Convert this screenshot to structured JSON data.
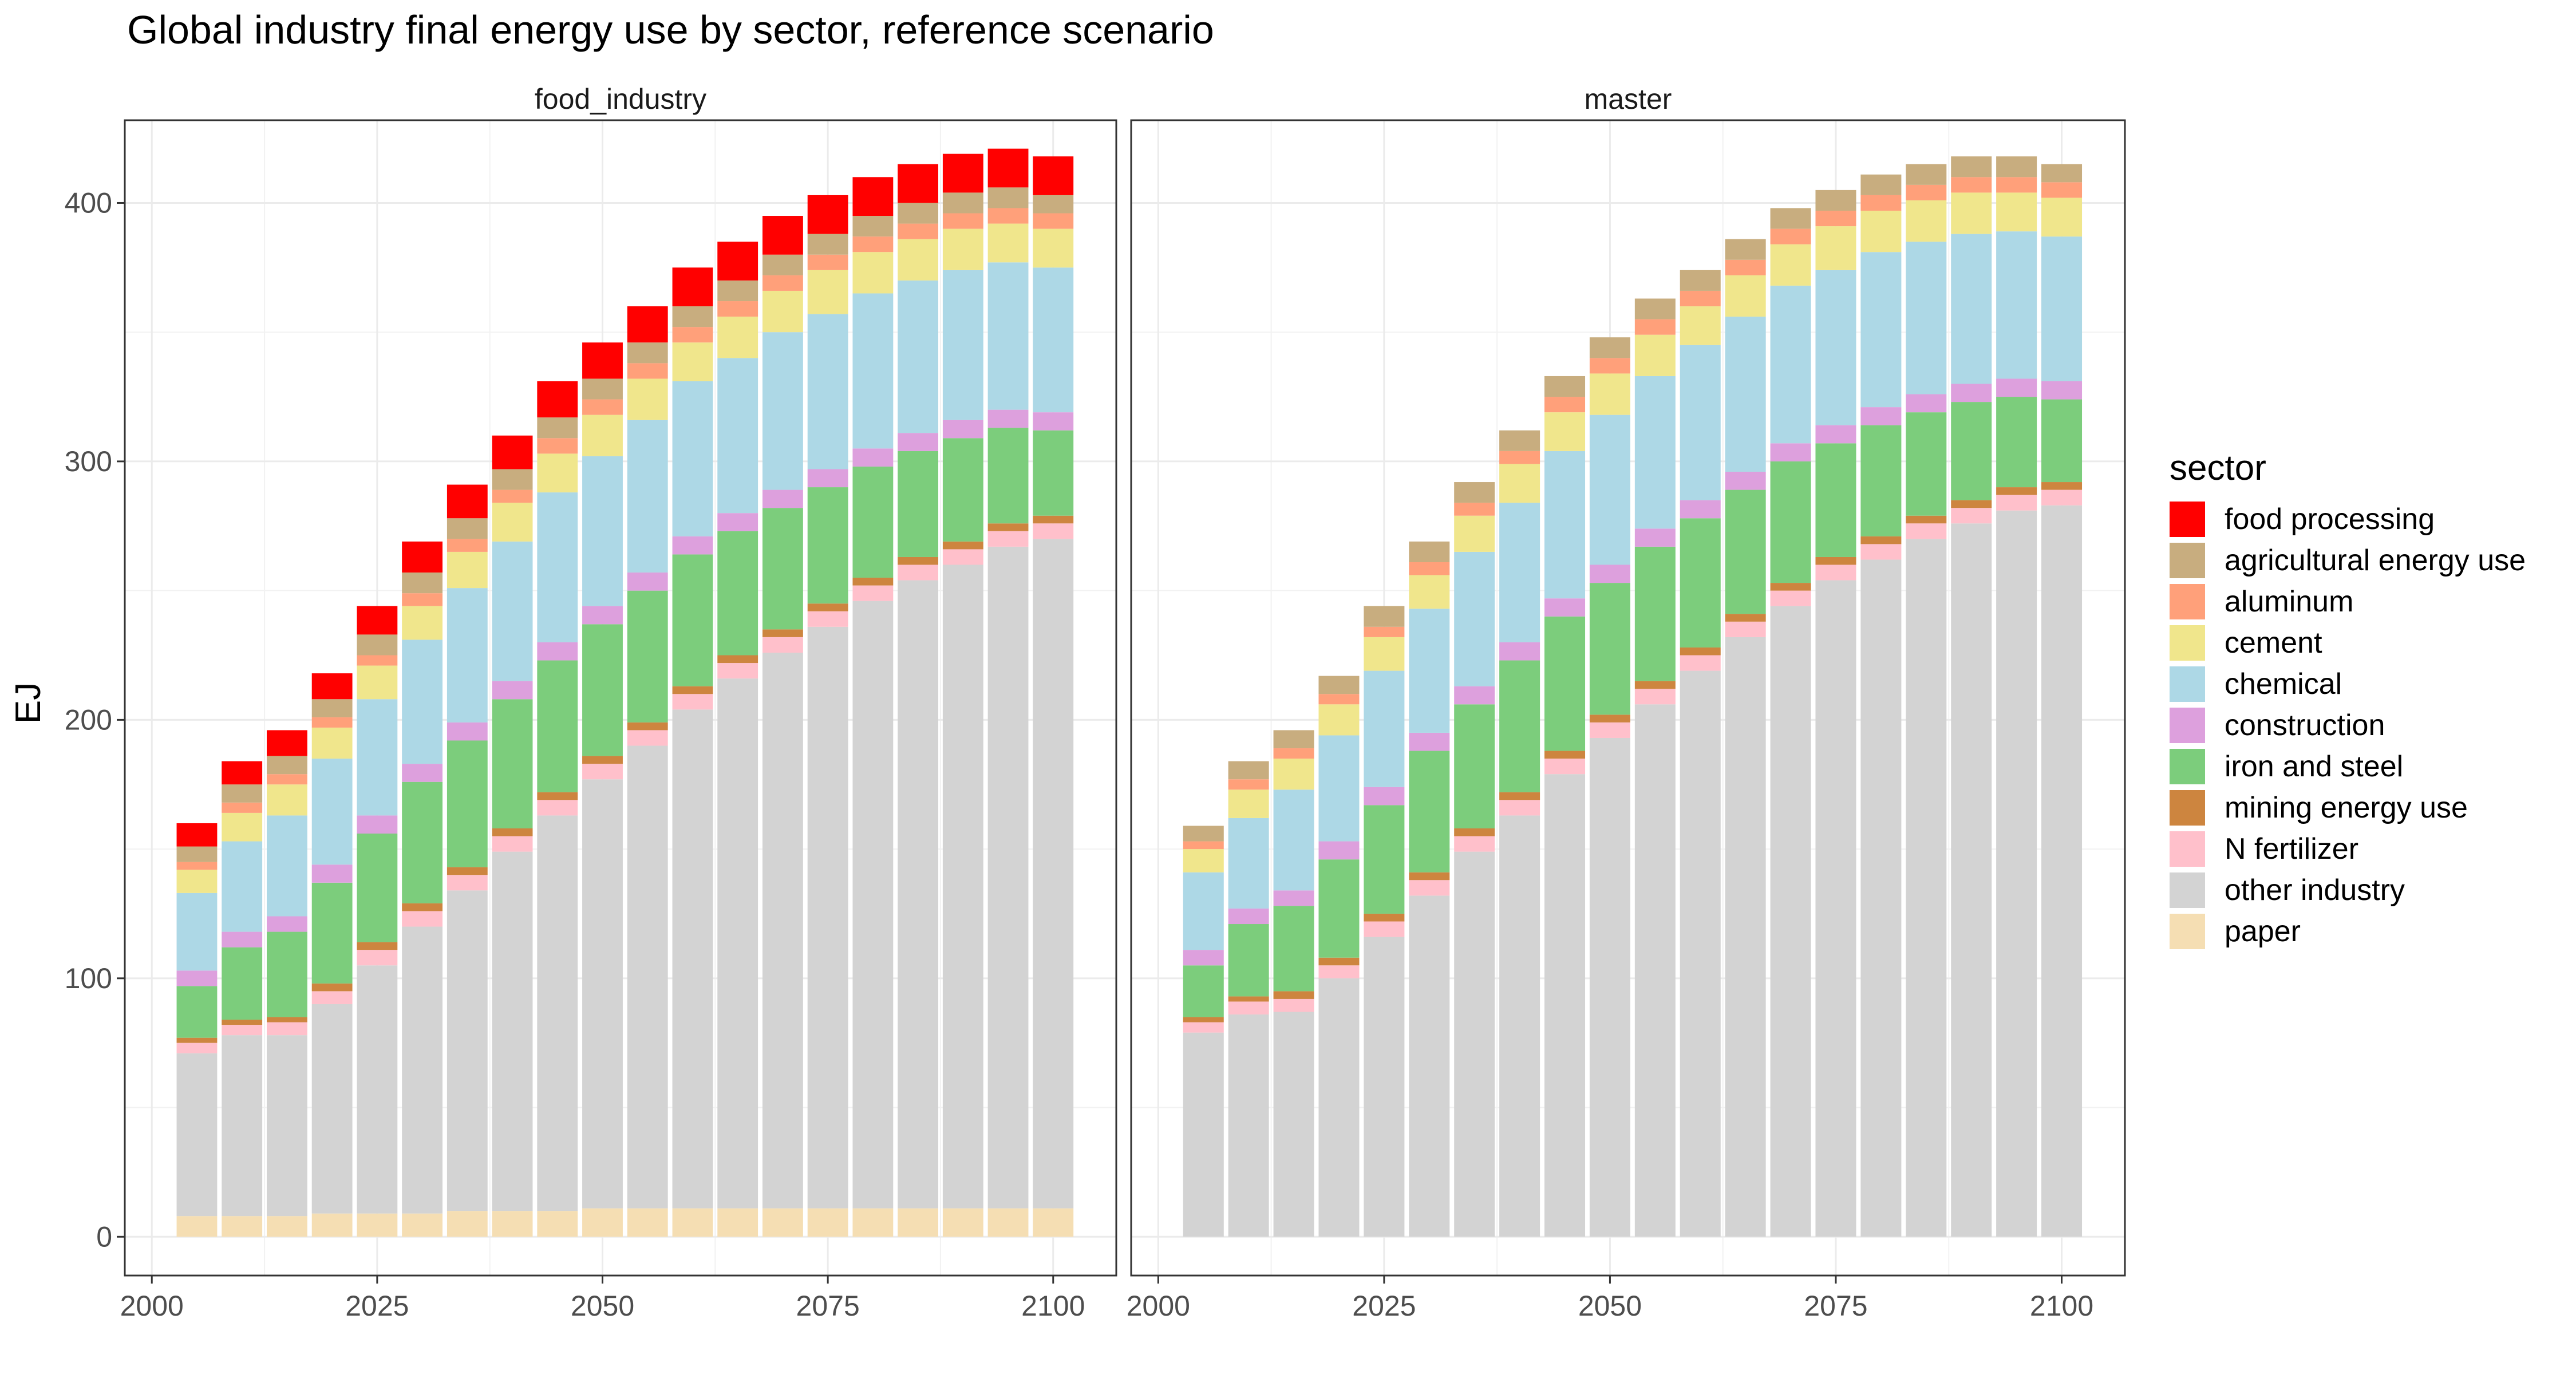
{
  "chart_data": {
    "type": "bar",
    "stacked": true,
    "title": "Global industry final energy use by sector, reference scenario",
    "ylabel": "EJ",
    "xlabel": "",
    "ylim": [
      -15,
      432
    ],
    "xlim": [
      1997,
      2107
    ],
    "yticks": [
      0,
      100,
      200,
      300,
      400
    ],
    "xticks": [
      2000,
      2025,
      2050,
      2075,
      2100
    ],
    "grid": true,
    "legend": {
      "title": "sector",
      "position": "right",
      "entries": [
        {
          "name": "food processing",
          "color": "#FF0000"
        },
        {
          "name": "agricultural energy use",
          "color": "#C8AD7F"
        },
        {
          "name": "aluminum",
          "color": "#FFA07A"
        },
        {
          "name": "cement",
          "color": "#F0E68C"
        },
        {
          "name": "chemical",
          "color": "#ADD8E6"
        },
        {
          "name": "construction",
          "color": "#DDA0DD"
        },
        {
          "name": "iron and steel",
          "color": "#7CCD7C"
        },
        {
          "name": "mining energy use",
          "color": "#CD853F"
        },
        {
          "name": "N fertilizer",
          "color": "#FFC0CB"
        },
        {
          "name": "other industry",
          "color": "#D3D3D3"
        },
        {
          "name": "paper",
          "color": "#F5DEB3"
        }
      ]
    },
    "stack_order": [
      "paper",
      "other industry",
      "N fertilizer",
      "mining energy use",
      "iron and steel",
      "construction",
      "chemical",
      "cement",
      "aluminum",
      "agricultural energy use",
      "food processing"
    ],
    "x": [
      2005,
      2010,
      2015,
      2020,
      2025,
      2030,
      2035,
      2040,
      2045,
      2050,
      2055,
      2060,
      2065,
      2070,
      2075,
      2080,
      2085,
      2090,
      2095,
      2100
    ],
    "panels": [
      {
        "name": "food_industry",
        "series": [
          {
            "name": "paper",
            "values": [
              8,
              8,
              8,
              9,
              9,
              9,
              10,
              10,
              10,
              11,
              11,
              11,
              11,
              11,
              11,
              11,
              11,
              11,
              11,
              11
            ]
          },
          {
            "name": "other industry",
            "values": [
              63,
              70,
              70,
              81,
              96,
              111,
              124,
              139,
              153,
              166,
              179,
              193,
              205,
              215,
              225,
              235,
              243,
              249,
              256,
              259
            ]
          },
          {
            "name": "N fertilizer",
            "values": [
              4,
              4,
              5,
              5,
              6,
              6,
              6,
              6,
              6,
              6,
              6,
              6,
              6,
              6,
              6,
              6,
              6,
              6,
              6,
              6
            ]
          },
          {
            "name": "mining energy use",
            "values": [
              2,
              2,
              2,
              3,
              3,
              3,
              3,
              3,
              3,
              3,
              3,
              3,
              3,
              3,
              3,
              3,
              3,
              3,
              3,
              3
            ]
          },
          {
            "name": "iron and steel",
            "values": [
              20,
              28,
              33,
              39,
              42,
              47,
              49,
              50,
              51,
              51,
              51,
              51,
              48,
              47,
              45,
              43,
              41,
              40,
              37,
              33
            ]
          },
          {
            "name": "construction",
            "values": [
              6,
              6,
              6,
              7,
              7,
              7,
              7,
              7,
              7,
              7,
              7,
              7,
              7,
              7,
              7,
              7,
              7,
              7,
              7,
              7
            ]
          },
          {
            "name": "chemical",
            "values": [
              30,
              35,
              39,
              41,
              45,
              48,
              52,
              54,
              58,
              58,
              59,
              60,
              60,
              61,
              60,
              60,
              59,
              58,
              57,
              56
            ]
          },
          {
            "name": "cement",
            "values": [
              9,
              11,
              12,
              12,
              13,
              13,
              14,
              15,
              15,
              16,
              16,
              15,
              16,
              16,
              17,
              16,
              16,
              16,
              15,
              15
            ]
          },
          {
            "name": "aluminum",
            "values": [
              3,
              4,
              4,
              4,
              4,
              5,
              5,
              5,
              6,
              6,
              6,
              6,
              6,
              6,
              6,
              6,
              6,
              6,
              6,
              6
            ]
          },
          {
            "name": "agricultural energy use",
            "values": [
              6,
              7,
              7,
              7,
              8,
              8,
              8,
              8,
              8,
              8,
              8,
              8,
              8,
              8,
              8,
              8,
              8,
              8,
              8,
              7
            ]
          },
          {
            "name": "food processing",
            "values": [
              9,
              9,
              10,
              10,
              11,
              12,
              13,
              13,
              14,
              14,
              14,
              15,
              15,
              15,
              15,
              15,
              15,
              15,
              15,
              15
            ]
          }
        ]
      },
      {
        "name": "master",
        "series": [
          {
            "name": "paper",
            "values": [
              0,
              0,
              0,
              0,
              0,
              0,
              0,
              0,
              0,
              0,
              0,
              0,
              0,
              0,
              0,
              0,
              0,
              0,
              0,
              0
            ]
          },
          {
            "name": "other industry",
            "values": [
              79,
              86,
              87,
              100,
              116,
              132,
              149,
              163,
              179,
              193,
              206,
              219,
              232,
              244,
              254,
              262,
              270,
              276,
              281,
              283
            ]
          },
          {
            "name": "N fertilizer",
            "values": [
              4,
              5,
              5,
              5,
              6,
              6,
              6,
              6,
              6,
              6,
              6,
              6,
              6,
              6,
              6,
              6,
              6,
              6,
              6,
              6
            ]
          },
          {
            "name": "mining energy use",
            "values": [
              2,
              2,
              3,
              3,
              3,
              3,
              3,
              3,
              3,
              3,
              3,
              3,
              3,
              3,
              3,
              3,
              3,
              3,
              3,
              3
            ]
          },
          {
            "name": "iron and steel",
            "values": [
              20,
              28,
              33,
              38,
              42,
              47,
              48,
              51,
              52,
              51,
              52,
              50,
              48,
              47,
              44,
              43,
              40,
              38,
              35,
              32
            ]
          },
          {
            "name": "construction",
            "values": [
              6,
              6,
              6,
              7,
              7,
              7,
              7,
              7,
              7,
              7,
              7,
              7,
              7,
              7,
              7,
              7,
              7,
              7,
              7,
              7
            ]
          },
          {
            "name": "chemical",
            "values": [
              30,
              35,
              39,
              41,
              45,
              48,
              52,
              54,
              57,
              58,
              59,
              60,
              60,
              61,
              60,
              60,
              59,
              58,
              57,
              56
            ]
          },
          {
            "name": "cement",
            "values": [
              9,
              11,
              12,
              12,
              13,
              13,
              14,
              15,
              15,
              16,
              16,
              15,
              16,
              16,
              17,
              16,
              16,
              16,
              15,
              15
            ]
          },
          {
            "name": "aluminum",
            "values": [
              3,
              4,
              4,
              4,
              4,
              5,
              5,
              5,
              6,
              6,
              6,
              6,
              6,
              6,
              6,
              6,
              6,
              6,
              6,
              6
            ]
          },
          {
            "name": "agricultural energy use",
            "values": [
              6,
              7,
              7,
              7,
              8,
              8,
              8,
              8,
              8,
              8,
              8,
              8,
              8,
              8,
              8,
              8,
              8,
              8,
              8,
              7
            ]
          },
          {
            "name": "food processing",
            "values": [
              0,
              0,
              0,
              0,
              0,
              0,
              0,
              0,
              0,
              0,
              0,
              0,
              0,
              0,
              0,
              0,
              0,
              0,
              0,
              0
            ]
          }
        ]
      }
    ]
  }
}
